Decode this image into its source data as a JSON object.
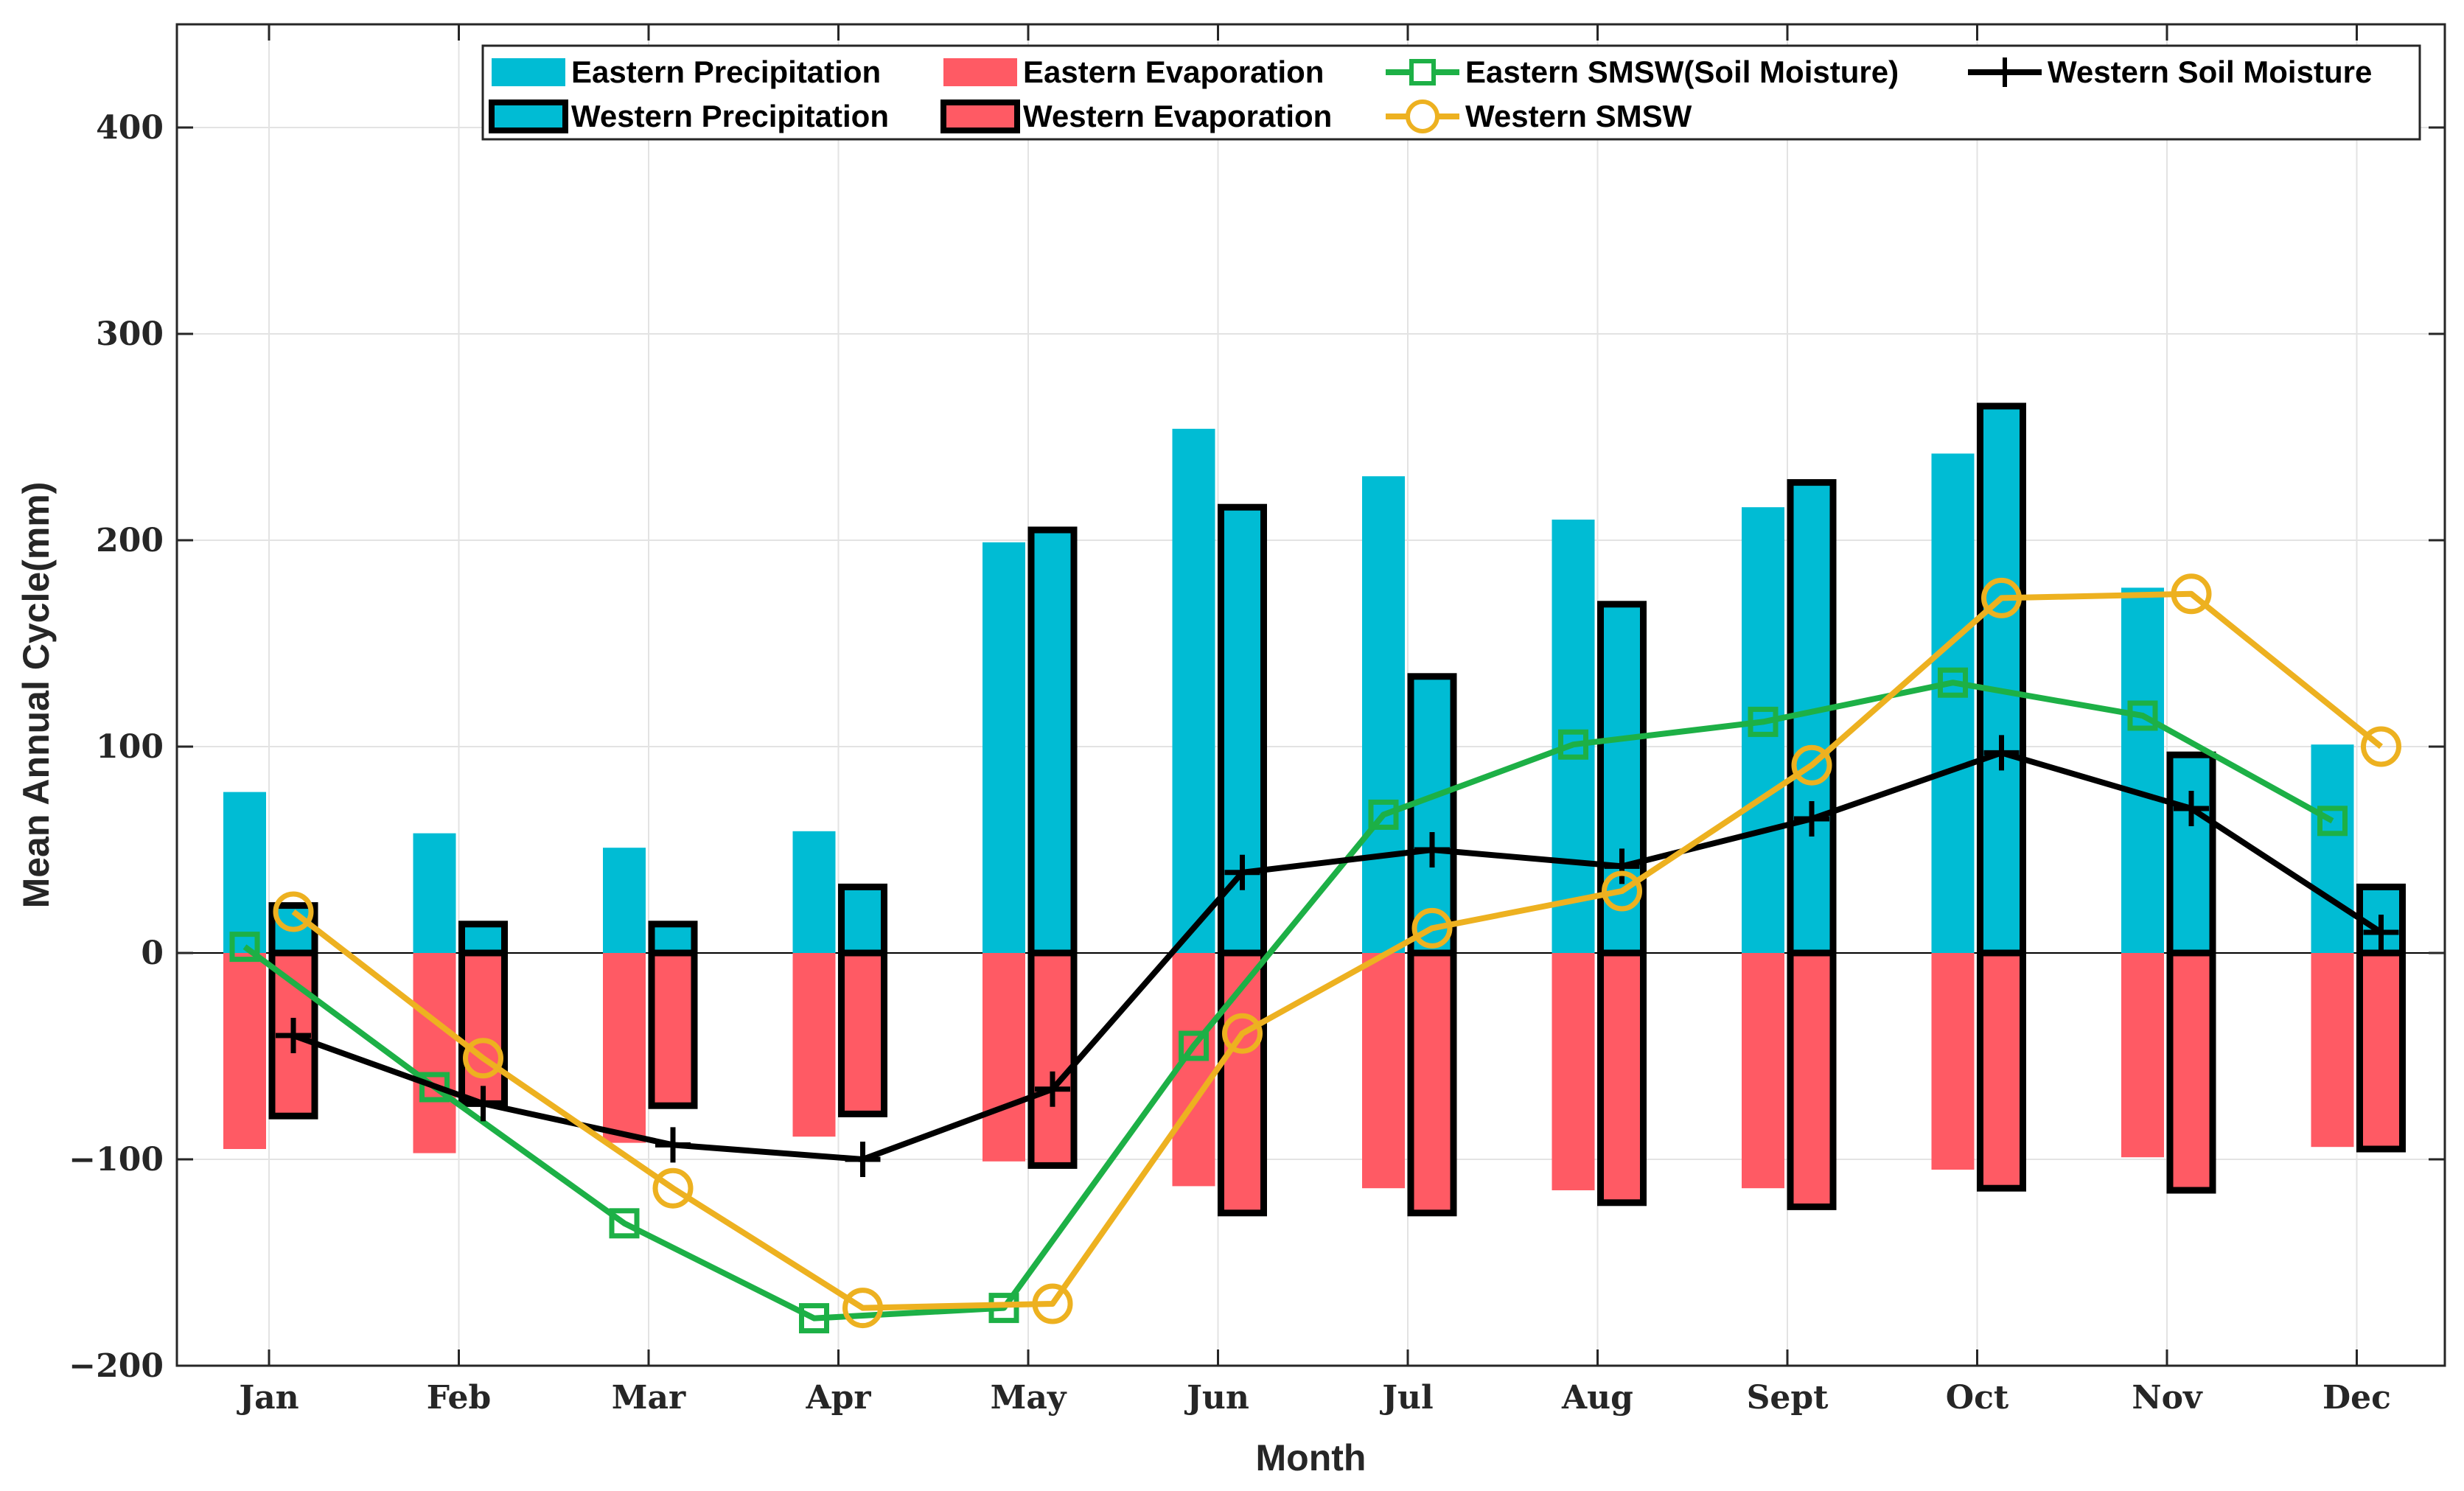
{
  "chart_data": {
    "type": "bar",
    "title": "",
    "xlabel": "Month",
    "ylabel": "Mean Annual Cycle(mm)",
    "ylim": [
      -200,
      450
    ],
    "yticks": [
      -200,
      -100,
      0,
      100,
      200,
      300,
      400
    ],
    "ytick_labels": [
      "−200",
      "−100",
      "0",
      "100",
      "200",
      "300",
      "400"
    ],
    "grid": true,
    "legend_position": "top-right",
    "categories": [
      "Jan",
      "Feb",
      "Mar",
      "Apr",
      "May",
      "Jun",
      "Jul",
      "Aug",
      "Sept",
      "Oct",
      "Nov",
      "Dec"
    ],
    "bar_series": [
      {
        "name": "Eastern Precipitation",
        "color": "#00BCD4",
        "outlined": false,
        "offset": "left",
        "values": [
          78,
          58,
          51,
          59,
          199,
          254,
          231,
          210,
          216,
          242,
          177,
          101
        ]
      },
      {
        "name": "Eastern Evaporation",
        "color": "#FF5A64",
        "outlined": false,
        "offset": "left",
        "values": [
          -95,
          -97,
          -92,
          -89,
          -101,
          -113,
          -114,
          -115,
          -114,
          -105,
          -99,
          -94
        ]
      },
      {
        "name": "Western Precipitation",
        "color": "#00BCD4",
        "outlined": true,
        "offset": "right",
        "values": [
          23,
          14,
          14,
          32,
          205,
          216,
          134,
          169,
          228,
          265,
          96,
          32
        ]
      },
      {
        "name": "Western Evaporation",
        "color": "#FF5A64",
        "outlined": true,
        "offset": "right",
        "values": [
          -79,
          -73,
          -74,
          -78,
          -103,
          -126,
          -126,
          -121,
          -123,
          -114,
          -115,
          -95
        ]
      }
    ],
    "line_series": [
      {
        "name": "Eastern SMSW(Soil Moisture)",
        "color": "#1DB046",
        "marker": "square",
        "offset": "left",
        "values": [
          3,
          -65,
          -131,
          -177,
          -172,
          -45,
          67,
          101,
          112,
          131,
          115,
          64
        ]
      },
      {
        "name": "Western Soil Moisture",
        "color": "#000000",
        "marker": "plus",
        "offset": "right",
        "values": [
          -40,
          -73,
          -93,
          -100,
          -66,
          39,
          50,
          42,
          65,
          97,
          70,
          10
        ]
      },
      {
        "name": "Western SMSW",
        "color": "#EDB120",
        "marker": "circle",
        "offset": "right",
        "values": [
          20,
          -51,
          -114,
          -172,
          -170,
          -39,
          12,
          30,
          91,
          172,
          174,
          100
        ]
      }
    ],
    "legend": {
      "rows": [
        [
          "Eastern Precipitation",
          "Eastern Evaporation",
          "Eastern SMSW(Soil Moisture)",
          "Western Soil Moisture"
        ],
        [
          "Western Precipitation",
          "Western Evaporation",
          "Western SMSW"
        ]
      ]
    }
  }
}
